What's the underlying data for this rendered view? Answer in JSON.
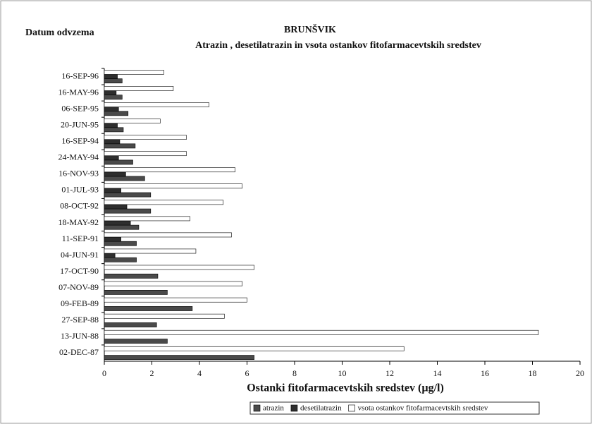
{
  "chart_data": {
    "type": "bar",
    "orientation": "horizontal",
    "title": "BRUNŠVIK",
    "subtitle": "Atrazin , desetilatrazin in vsota ostankov fitofarmacevtskih sredstev",
    "y_label": "Datum odvzema",
    "x_label": "Ostanki fitofarmacevtskih sredstev (µg/l)",
    "categories": [
      "16-SEP-96",
      "16-MAY-96",
      "06-SEP-95",
      "20-JUN-95",
      "16-SEP-94",
      "24-MAY-94",
      "16-NOV-93",
      "01-JUL-93",
      "08-OCT-92",
      "18-MAY-92",
      "11-SEP-91",
      "04-JUN-91",
      "17-OCT-90",
      "07-NOV-89",
      "09-FEB-89",
      "27-SEP-88",
      "13-JUN-88",
      "02-DEC-87"
    ],
    "series": [
      {
        "name": "atrazin",
        "color": "#4a4a4a",
        "values": [
          0.75,
          0.75,
          1.0,
          0.8,
          1.3,
          1.2,
          1.7,
          1.95,
          1.95,
          1.45,
          1.35,
          1.35,
          2.25,
          2.65,
          3.7,
          2.2,
          2.65,
          6.3
        ]
      },
      {
        "name": "desetilatrazin",
        "color": "#2e2e2e",
        "values": [
          0.55,
          0.5,
          0.6,
          0.55,
          0.65,
          0.6,
          0.9,
          0.7,
          0.95,
          1.1,
          0.7,
          0.45,
          0,
          0,
          0,
          0,
          0,
          0
        ]
      },
      {
        "name": "vsota ostankov fitofarmacevtskih sredstev",
        "color": "#ffffff",
        "values": [
          2.5,
          2.9,
          4.4,
          2.35,
          3.45,
          3.45,
          5.5,
          5.8,
          5.0,
          3.6,
          5.35,
          3.85,
          6.3,
          5.8,
          6.0,
          5.05,
          18.25,
          12.6
        ]
      }
    ],
    "xlim": [
      0,
      20
    ],
    "xticks": [
      0,
      2,
      4,
      6,
      8,
      10,
      12,
      14,
      16,
      18,
      20
    ]
  }
}
